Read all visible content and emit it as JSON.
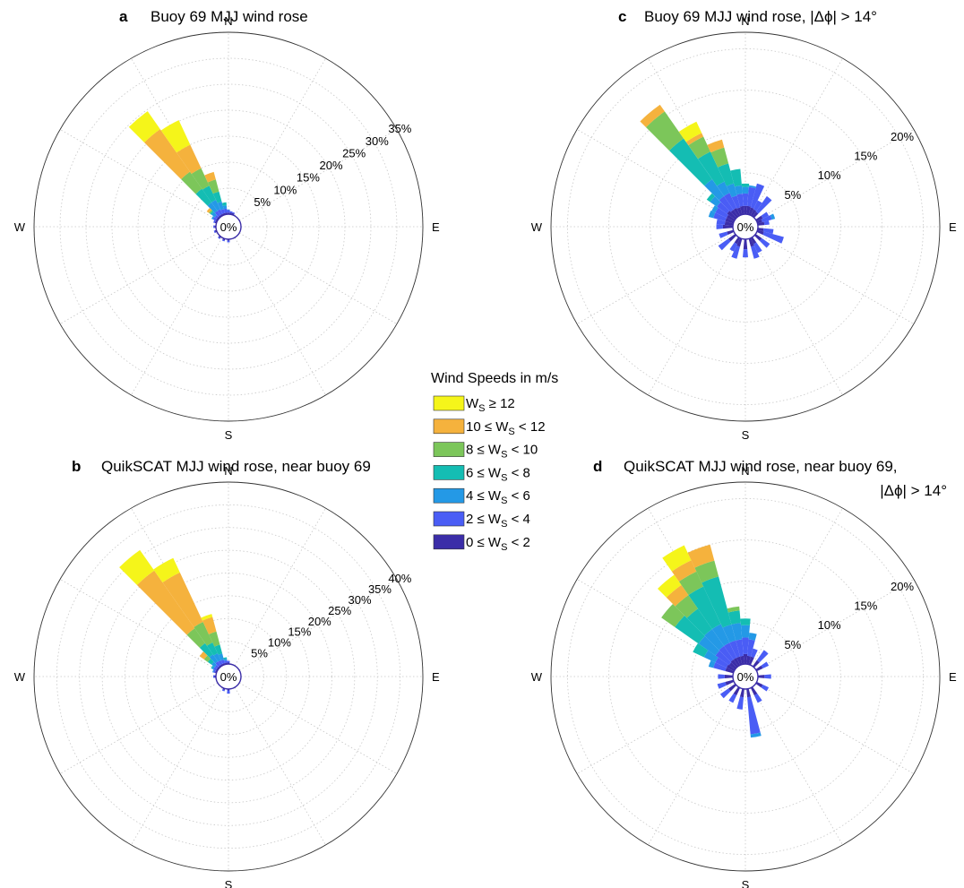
{
  "legend": {
    "title": "Wind Speeds in m/s",
    "items": [
      {
        "pre": "W",
        "sub": "S",
        "post": " ≥ 12",
        "color": "#f5f51a"
      },
      {
        "pre": "10 ≤ W",
        "sub": "S",
        "post": " < 12",
        "color": "#f5b23d"
      },
      {
        "pre": "8 ≤ W",
        "sub": "S",
        "post": " < 10",
        "color": "#7cc65a"
      },
      {
        "pre": "6 ≤ W",
        "sub": "S",
        "post": " < 8",
        "color": "#14bdb3"
      },
      {
        "pre": "4 ≤ W",
        "sub": "S",
        "post": " < 6",
        "color": "#2499e6"
      },
      {
        "pre": "2 ≤ W",
        "sub": "S",
        "post": " < 4",
        "color": "#4a5df5"
      },
      {
        "pre": "0 ≤ W",
        "sub": "S",
        "post": " < 2",
        "color": "#3b2da8"
      }
    ]
  },
  "chart_data": [
    {
      "type": "polar-stacked-bar",
      "panel_label": "a",
      "title": "Buoy 69 MJJ wind rose",
      "directions": [
        "N",
        "E",
        "S",
        "W"
      ],
      "center_label": "0%",
      "rmax": 35,
      "rings": [
        "5%",
        "10%",
        "15%",
        "20%",
        "25%",
        "30%",
        "35%"
      ],
      "sector_width_deg": 10,
      "series_order": [
        "0-2",
        "2-4",
        "4-6",
        "6-8",
        "8-10",
        "10-12",
        "12+"
      ],
      "sectors": [
        {
          "dir": 320,
          "values": [
            0.3,
            1.0,
            2.0,
            3.2,
            4.0,
            10.0,
            4.2
          ]
        },
        {
          "dir": 330,
          "values": [
            0.3,
            1.0,
            2.0,
            3.0,
            3.7,
            5.0,
            5.2
          ]
        },
        {
          "dir": 340,
          "values": [
            0.3,
            0.8,
            1.5,
            2.0,
            2.4,
            1.5,
            0
          ]
        },
        {
          "dir": 310,
          "values": [
            0.3,
            0.5,
            0.8,
            0.3,
            0.3,
            0.5,
            0
          ]
        },
        {
          "dir": 350,
          "values": [
            0.3,
            0.8,
            0.6,
            0.6,
            0,
            0,
            0
          ]
        },
        {
          "dir": 300,
          "values": [
            0.3,
            0.6,
            0.3,
            0,
            0,
            0,
            0
          ]
        },
        {
          "dir": 290,
          "values": [
            0.3,
            0.3,
            0,
            0,
            0,
            0,
            0
          ]
        },
        {
          "dir": 0,
          "values": [
            0.3,
            0.5,
            0.1,
            0,
            0,
            0,
            0
          ]
        },
        {
          "dir": 10,
          "values": [
            0.3,
            0.3,
            0,
            0,
            0,
            0,
            0
          ]
        },
        {
          "dir": 20,
          "values": [
            0.3,
            0.2,
            0,
            0,
            0,
            0,
            0
          ]
        },
        {
          "dir": 180,
          "values": [
            0.3,
            0.3,
            0,
            0,
            0,
            0,
            0
          ]
        },
        {
          "dir": 200,
          "values": [
            0.3,
            0.2,
            0,
            0,
            0,
            0,
            0
          ]
        },
        {
          "dir": 220,
          "values": [
            0.3,
            0.2,
            0,
            0,
            0,
            0,
            0
          ]
        },
        {
          "dir": 250,
          "values": [
            0.3,
            0.2,
            0,
            0,
            0,
            0,
            0
          ]
        },
        {
          "dir": 270,
          "values": [
            0.3,
            0.2,
            0,
            0,
            0,
            0,
            0
          ]
        }
      ]
    },
    {
      "type": "polar-stacked-bar",
      "panel_label": "b",
      "title": "QuikSCAT MJJ wind rose, near buoy 69",
      "directions": [
        "N",
        "E",
        "S",
        "W"
      ],
      "center_label": "0%",
      "rmax": 40,
      "rings": [
        "5%",
        "10%",
        "15%",
        "20%",
        "25%",
        "30%",
        "35%",
        "40%"
      ],
      "sector_width_deg": 10,
      "series_order": [
        "0-2",
        "2-4",
        "4-6",
        "6-8",
        "8-10",
        "10-12",
        "12+"
      ],
      "sectors": [
        {
          "dir": 320,
          "values": [
            0.3,
            1.0,
            1.9,
            3.0,
            4.0,
            15.5,
            5.5
          ]
        },
        {
          "dir": 330,
          "values": [
            0.3,
            0.9,
            1.7,
            2.6,
            5.0,
            12.0,
            3.5
          ]
        },
        {
          "dir": 340,
          "values": [
            0.3,
            0.8,
            1.4,
            2.0,
            3.0,
            3.3,
            0.7
          ]
        },
        {
          "dir": 310,
          "values": [
            0.3,
            0.6,
            0.9,
            1.0,
            1.0,
            1.2,
            0
          ]
        },
        {
          "dir": 350,
          "values": [
            0.3,
            0.5,
            0.4,
            0.3,
            0,
            0,
            0
          ]
        },
        {
          "dir": 300,
          "values": [
            0.3,
            0.6,
            0.4,
            0.2,
            0,
            0,
            0
          ]
        },
        {
          "dir": 290,
          "values": [
            0.3,
            0.4,
            0.2,
            0,
            0,
            0,
            0
          ]
        },
        {
          "dir": 0,
          "values": [
            0.3,
            0.4,
            0,
            0,
            0,
            0,
            0
          ]
        },
        {
          "dir": 180,
          "values": [
            0.3,
            0.7,
            0,
            0,
            0,
            0,
            0
          ]
        },
        {
          "dir": 200,
          "values": [
            0.3,
            0.3,
            0,
            0,
            0,
            0,
            0
          ]
        },
        {
          "dir": 270,
          "values": [
            0.3,
            0.3,
            0,
            0,
            0,
            0,
            0
          ]
        }
      ]
    },
    {
      "type": "polar-stacked-bar",
      "panel_label": "c",
      "title": "Buoy 69 MJJ wind rose, |Δϕ| > 14°",
      "directions": [
        "N",
        "E",
        "S",
        "W"
      ],
      "center_label": "0%",
      "rmax": 22,
      "rings": [
        "5%",
        "10%",
        "15%",
        "20%"
      ],
      "sector_width_deg": 10,
      "series_order": [
        "0-2",
        "2-4",
        "4-6",
        "6-8",
        "8-10",
        "10-12",
        "12+"
      ],
      "sectors": [
        {
          "dir": 320,
          "values": [
            1.0,
            2.0,
            2.5,
            6.0,
            4.0,
            1.0,
            0
          ]
        },
        {
          "dir": 330,
          "values": [
            1.0,
            2.0,
            1.5,
            4.0,
            2.0,
            0.5,
            1.5
          ]
        },
        {
          "dir": 340,
          "values": [
            0.9,
            1.5,
            1.5,
            2.5,
            2.0,
            1.0,
            0
          ]
        },
        {
          "dir": 350,
          "values": [
            1.0,
            1.5,
            1.0,
            2.0,
            0,
            0,
            0
          ]
        },
        {
          "dir": 310,
          "values": [
            1.2,
            1.5,
            1.0,
            0.5,
            0,
            0,
            0
          ]
        },
        {
          "dir": 0,
          "values": [
            1.0,
            1.5,
            0.8,
            0.4,
            0,
            0,
            0
          ]
        },
        {
          "dir": 10,
          "values": [
            1.0,
            2.3,
            0.2,
            0,
            0,
            0,
            0
          ]
        },
        {
          "dir": 20,
          "values": [
            0.9,
            3.0,
            0,
            0,
            0,
            0,
            0
          ]
        },
        {
          "dir": 30,
          "values": [
            0.8,
            1.2,
            0,
            0,
            0,
            0,
            0
          ]
        },
        {
          "dir": 40,
          "values": [
            0.7,
            2.3,
            0,
            0,
            0,
            0,
            0
          ]
        },
        {
          "dir": 60,
          "values": [
            0.8,
            0.8,
            0,
            0,
            0,
            0,
            0
          ]
        },
        {
          "dir": 70,
          "values": [
            0.6,
            1.2,
            0.4,
            0,
            0,
            0,
            0
          ]
        },
        {
          "dir": 80,
          "values": [
            0.8,
            0.6,
            0,
            0,
            0,
            0,
            0
          ]
        },
        {
          "dir": 100,
          "values": [
            0.7,
            1.2,
            0,
            0,
            0,
            0,
            0
          ]
        },
        {
          "dir": 110,
          "values": [
            0.8,
            2.5,
            0,
            0,
            0,
            0,
            0
          ]
        },
        {
          "dir": 130,
          "values": [
            0.9,
            1.2,
            0,
            0,
            0,
            0,
            0
          ]
        },
        {
          "dir": 150,
          "values": [
            0.8,
            1.2,
            0,
            0,
            0,
            0,
            0
          ]
        },
        {
          "dir": 160,
          "values": [
            1.0,
            1.5,
            0,
            0,
            0,
            0,
            0
          ]
        },
        {
          "dir": 180,
          "values": [
            1.2,
            1.0,
            0,
            0,
            0,
            0,
            0
          ]
        },
        {
          "dir": 200,
          "values": [
            1.0,
            1.5,
            0,
            0,
            0,
            0,
            0
          ]
        },
        {
          "dir": 210,
          "values": [
            0.8,
            1.0,
            0,
            0,
            0,
            0,
            0
          ]
        },
        {
          "dir": 230,
          "values": [
            1.0,
            1.5,
            0,
            0,
            0,
            0,
            0
          ]
        },
        {
          "dir": 250,
          "values": [
            0.8,
            1.0,
            0,
            0,
            0,
            0,
            0
          ]
        },
        {
          "dir": 270,
          "values": [
            1.2,
            0.8,
            0,
            0,
            0,
            0,
            0
          ]
        },
        {
          "dir": 280,
          "values": [
            1.0,
            1.0,
            0,
            0,
            0,
            0,
            0
          ]
        },
        {
          "dir": 290,
          "values": [
            1.0,
            1.5,
            0.6,
            0,
            0,
            0,
            0
          ]
        },
        {
          "dir": 300,
          "values": [
            1.0,
            1.5,
            0.5,
            0,
            0,
            0,
            0
          ]
        }
      ]
    },
    {
      "type": "polar-stacked-bar",
      "panel_label": "d",
      "title": "QuikSCAT MJJ wind rose, near buoy 69,",
      "title_line2": "|Δϕ| > 14°",
      "directions": [
        "N",
        "E",
        "S",
        "W"
      ],
      "center_label": "0%",
      "rmax": 22,
      "rings": [
        "5%",
        "10%",
        "15%",
        "20%"
      ],
      "sector_width_deg": 10,
      "series_order": [
        "0-2",
        "2-4",
        "4-6",
        "6-8",
        "8-10",
        "10-12",
        "12+"
      ],
      "sectors": [
        {
          "dir": 330,
          "values": [
            1.0,
            2.0,
            2.5,
            5.0,
            2.0,
            1.5,
            2.0
          ]
        },
        {
          "dir": 340,
          "values": [
            1.0,
            2.0,
            2.0,
            6.0,
            2.0,
            2.0,
            0
          ]
        },
        {
          "dir": 320,
          "values": [
            1.0,
            2.0,
            2.5,
            3.0,
            2.0,
            1.5,
            1.5
          ]
        },
        {
          "dir": 310,
          "values": [
            0.9,
            2.0,
            2.5,
            3.5,
            2.0,
            0,
            0
          ]
        },
        {
          "dir": 300,
          "values": [
            1.0,
            1.5,
            1.5,
            1.5,
            0,
            0,
            0
          ]
        },
        {
          "dir": 350,
          "values": [
            1.0,
            2.0,
            2.0,
            1.5,
            0.5,
            0,
            0
          ]
        },
        {
          "dir": 0,
          "values": [
            1.2,
            2.0,
            1.5,
            0.8,
            0,
            0,
            0
          ]
        },
        {
          "dir": 10,
          "values": [
            1.0,
            2.0,
            0.8,
            0,
            0,
            0,
            0
          ]
        },
        {
          "dir": 20,
          "values": [
            1.0,
            1.0,
            0,
            0,
            0,
            0,
            0
          ]
        },
        {
          "dir": 40,
          "values": [
            0.9,
            1.5,
            0,
            0,
            0,
            0,
            0
          ]
        },
        {
          "dir": 60,
          "values": [
            0.8,
            0.8,
            0,
            0,
            0,
            0,
            0
          ]
        },
        {
          "dir": 90,
          "values": [
            0.8,
            0.8,
            0,
            0,
            0,
            0,
            0
          ]
        },
        {
          "dir": 120,
          "values": [
            0.8,
            0.8,
            0,
            0,
            0,
            0,
            0
          ]
        },
        {
          "dir": 150,
          "values": [
            1.0,
            1.0,
            0,
            0,
            0,
            0,
            0
          ]
        },
        {
          "dir": 170,
          "values": [
            1.0,
            4.5,
            0.4,
            0,
            0,
            0,
            0
          ]
        },
        {
          "dir": 190,
          "values": [
            1.0,
            1.5,
            0,
            0,
            0,
            0,
            0
          ]
        },
        {
          "dir": 210,
          "values": [
            1.0,
            1.0,
            0,
            0,
            0,
            0,
            0
          ]
        },
        {
          "dir": 230,
          "values": [
            1.0,
            1.2,
            0,
            0,
            0,
            0,
            0
          ]
        },
        {
          "dir": 250,
          "values": [
            1.0,
            1.0,
            0,
            0,
            0,
            0,
            0
          ]
        },
        {
          "dir": 270,
          "values": [
            1.0,
            0.8,
            0,
            0,
            0,
            0,
            0
          ]
        },
        {
          "dir": 290,
          "values": [
            1.0,
            1.5,
            0.6,
            0,
            0,
            0,
            0
          ]
        }
      ]
    }
  ]
}
